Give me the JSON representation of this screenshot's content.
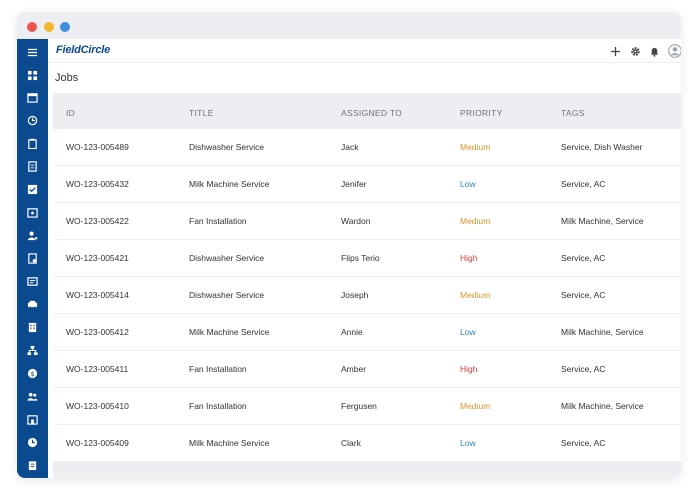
{
  "app": {
    "logo": "FieldCircle"
  },
  "page": {
    "title": "Jobs"
  },
  "colors": {
    "sidebar": "#0c4a8f",
    "medium": "#d9962b",
    "low": "#2a7fc1",
    "high": "#d43a3a"
  },
  "table": {
    "headers": [
      "ID",
      "TITLE",
      "ASSIGNED TO",
      "PRIORITY",
      "TAGS"
    ],
    "rows": [
      {
        "id": "WO-123-005489",
        "title": "Dishwasher Service",
        "assigned": "Jack",
        "priority": "Medium",
        "tags": "Service, Dish Washer"
      },
      {
        "id": "WO-123-005432",
        "title": "Milk Machine Service",
        "assigned": "Jenifer",
        "priority": "Low",
        "tags": "Service, AC"
      },
      {
        "id": "WO-123-005422",
        "title": "Fan Installation",
        "assigned": "Wardon",
        "priority": "Medium",
        "tags": "Milk Machine, Service"
      },
      {
        "id": "WO-123-005421",
        "title": "Dishwasher Service",
        "assigned": "Flips Terio",
        "priority": "High",
        "tags": "Service, AC"
      },
      {
        "id": "WO-123-005414",
        "title": "Dishwasher Service",
        "assigned": "Joseph",
        "priority": "Medium",
        "tags": "Service, AC"
      },
      {
        "id": "WO-123-005412",
        "title": "Milk Machine Service",
        "assigned": "Annie",
        "priority": "Low",
        "tags": "Milk Machine, Service"
      },
      {
        "id": "WO-123-005411",
        "title": "Fan Installation",
        "assigned": "Amber",
        "priority": "High",
        "tags": "Service, AC"
      },
      {
        "id": "WO-123-005410",
        "title": "Fan Installation",
        "assigned": "Fergusen",
        "priority": "Medium",
        "tags": "Milk Machine, Service"
      },
      {
        "id": "WO-123-005409",
        "title": "Milk Machine Service",
        "assigned": "Clark",
        "priority": "Low",
        "tags": "Service, AC"
      }
    ]
  },
  "sidebar_icons": [
    "menu-icon",
    "dashboard-icon",
    "calendar-icon",
    "dispatch-icon",
    "clipboard-icon",
    "report-icon",
    "checkbox-icon",
    "schedule-icon",
    "technician-icon",
    "invoice-icon",
    "document-icon",
    "vehicle-icon",
    "building-icon",
    "hierarchy-icon",
    "payment-icon",
    "team-icon",
    "store-icon",
    "clock-icon",
    "checklist-icon"
  ],
  "top_icons": [
    "add-icon",
    "gear-icon",
    "bell-icon",
    "user-avatar-icon"
  ]
}
